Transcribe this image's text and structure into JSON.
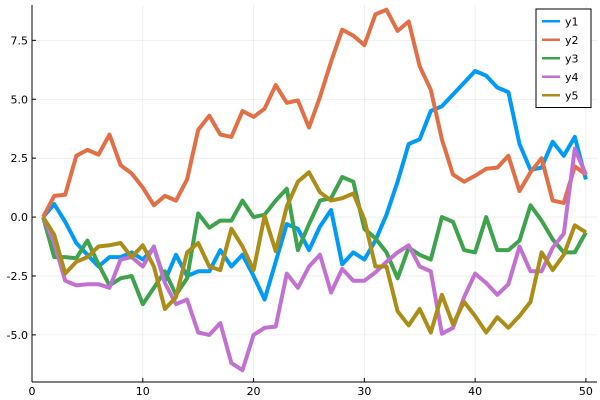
{
  "chart_data": {
    "type": "line",
    "x": [
      1,
      2,
      3,
      4,
      5,
      6,
      7,
      8,
      9,
      10,
      11,
      12,
      13,
      14,
      15,
      16,
      17,
      18,
      19,
      20,
      21,
      22,
      23,
      24,
      25,
      26,
      27,
      28,
      29,
      30,
      31,
      32,
      33,
      34,
      35,
      36,
      37,
      38,
      39,
      40,
      41,
      42,
      43,
      44,
      45,
      46,
      47,
      48,
      49,
      50
    ],
    "xlim": [
      0,
      51
    ],
    "ylim": [
      -7,
      9
    ],
    "xticks": [
      0,
      10,
      20,
      30,
      40,
      50
    ],
    "xtick_labels": [
      "0",
      "10",
      "20",
      "30",
      "40",
      "50"
    ],
    "yticks": [
      -5,
      -2.5,
      0,
      2.5,
      5,
      7.5
    ],
    "ytick_labels": [
      "-5.0",
      "-2.5",
      "0.0",
      "2.5",
      "5.0",
      "7.5"
    ],
    "grid": true,
    "legend": "top-right",
    "series": [
      {
        "name": "y1",
        "color": "#009af9",
        "values": [
          0.0,
          0.55,
          -0.2,
          -1.1,
          -1.6,
          -2.1,
          -1.7,
          -1.7,
          -1.5,
          -1.8,
          -1.3,
          -2.7,
          -1.6,
          -2.5,
          -2.3,
          -2.3,
          -1.4,
          -2.1,
          -1.6,
          -2.5,
          -3.5,
          -1.9,
          -0.3,
          -0.5,
          -1.4,
          -0.4,
          0.3,
          -2.0,
          -1.5,
          -1.8,
          -1.0,
          0.1,
          1.5,
          3.1,
          3.3,
          4.5,
          4.7,
          5.2,
          5.7,
          6.2,
          6.0,
          5.5,
          5.3,
          3.1,
          2.0,
          2.1,
          3.2,
          2.6,
          3.4,
          1.6
        ]
      },
      {
        "name": "y2",
        "color": "#e26f46",
        "values": [
          0.0,
          0.9,
          0.95,
          2.6,
          2.85,
          2.65,
          3.5,
          2.2,
          1.85,
          1.25,
          0.5,
          0.9,
          0.7,
          1.6,
          3.7,
          4.3,
          3.5,
          3.4,
          4.5,
          4.25,
          4.6,
          5.6,
          4.85,
          4.95,
          3.8,
          5.1,
          6.6,
          7.95,
          7.7,
          7.3,
          8.6,
          8.8,
          7.9,
          8.3,
          6.4,
          5.4,
          3.3,
          1.8,
          1.5,
          1.75,
          2.05,
          2.1,
          2.6,
          1.1,
          1.9,
          2.5,
          0.7,
          0.6,
          2.15,
          1.8
        ]
      },
      {
        "name": "y3",
        "color": "#3da44d",
        "values": [
          0.0,
          -1.7,
          -1.7,
          -1.75,
          -1.0,
          -2.0,
          -2.9,
          -2.6,
          -2.5,
          -3.7,
          -3.0,
          -2.3,
          -3.3,
          -2.6,
          0.15,
          -0.45,
          -0.15,
          -0.15,
          0.7,
          0.0,
          0.1,
          0.7,
          1.2,
          -1.4,
          -0.3,
          0.7,
          0.8,
          1.7,
          1.5,
          -0.5,
          -0.9,
          -1.5,
          -2.6,
          -1.3,
          -1.6,
          -1.8,
          0.0,
          -0.2,
          -1.4,
          -1.5,
          0.0,
          -1.4,
          -1.4,
          -1.0,
          0.5,
          -0.15,
          -0.95,
          -1.5,
          -1.5,
          -0.65
        ]
      },
      {
        "name": "y4",
        "color": "#c271d2",
        "values": [
          0.0,
          -1.1,
          -2.7,
          -2.9,
          -2.85,
          -2.85,
          -3.0,
          -1.8,
          -1.7,
          -2.1,
          -1.25,
          -2.8,
          -3.7,
          -3.5,
          -4.9,
          -5.0,
          -4.5,
          -6.2,
          -6.5,
          -5.0,
          -4.7,
          -4.65,
          -2.4,
          -3.0,
          -2.1,
          -1.6,
          -3.2,
          -2.2,
          -2.7,
          -2.7,
          -2.35,
          -1.9,
          -1.5,
          -1.2,
          -2.1,
          -2.3,
          -4.95,
          -4.7,
          -3.4,
          -2.4,
          -2.8,
          -3.3,
          -2.85,
          -1.25,
          -2.3,
          -2.3,
          -1.3,
          -0.7,
          2.9,
          1.8
        ]
      },
      {
        "name": "y5",
        "color": "#ac8d18",
        "values": [
          0.0,
          -0.75,
          -2.4,
          -1.9,
          -1.7,
          -1.25,
          -1.2,
          -1.1,
          -1.7,
          -1.2,
          -2.1,
          -3.9,
          -3.4,
          -1.5,
          -1.1,
          -2.1,
          -2.25,
          -0.5,
          -1.25,
          -2.25,
          0.05,
          -1.45,
          0.45,
          1.5,
          1.9,
          1.05,
          0.7,
          0.8,
          1.0,
          -0.1,
          -2.1,
          -2.1,
          -4.0,
          -4.6,
          -3.9,
          -4.9,
          -3.3,
          -4.55,
          -3.6,
          -4.2,
          -4.9,
          -4.25,
          -4.7,
          -4.2,
          -3.6,
          -1.5,
          -2.25,
          -1.6,
          -0.35,
          -0.65
        ]
      }
    ]
  }
}
